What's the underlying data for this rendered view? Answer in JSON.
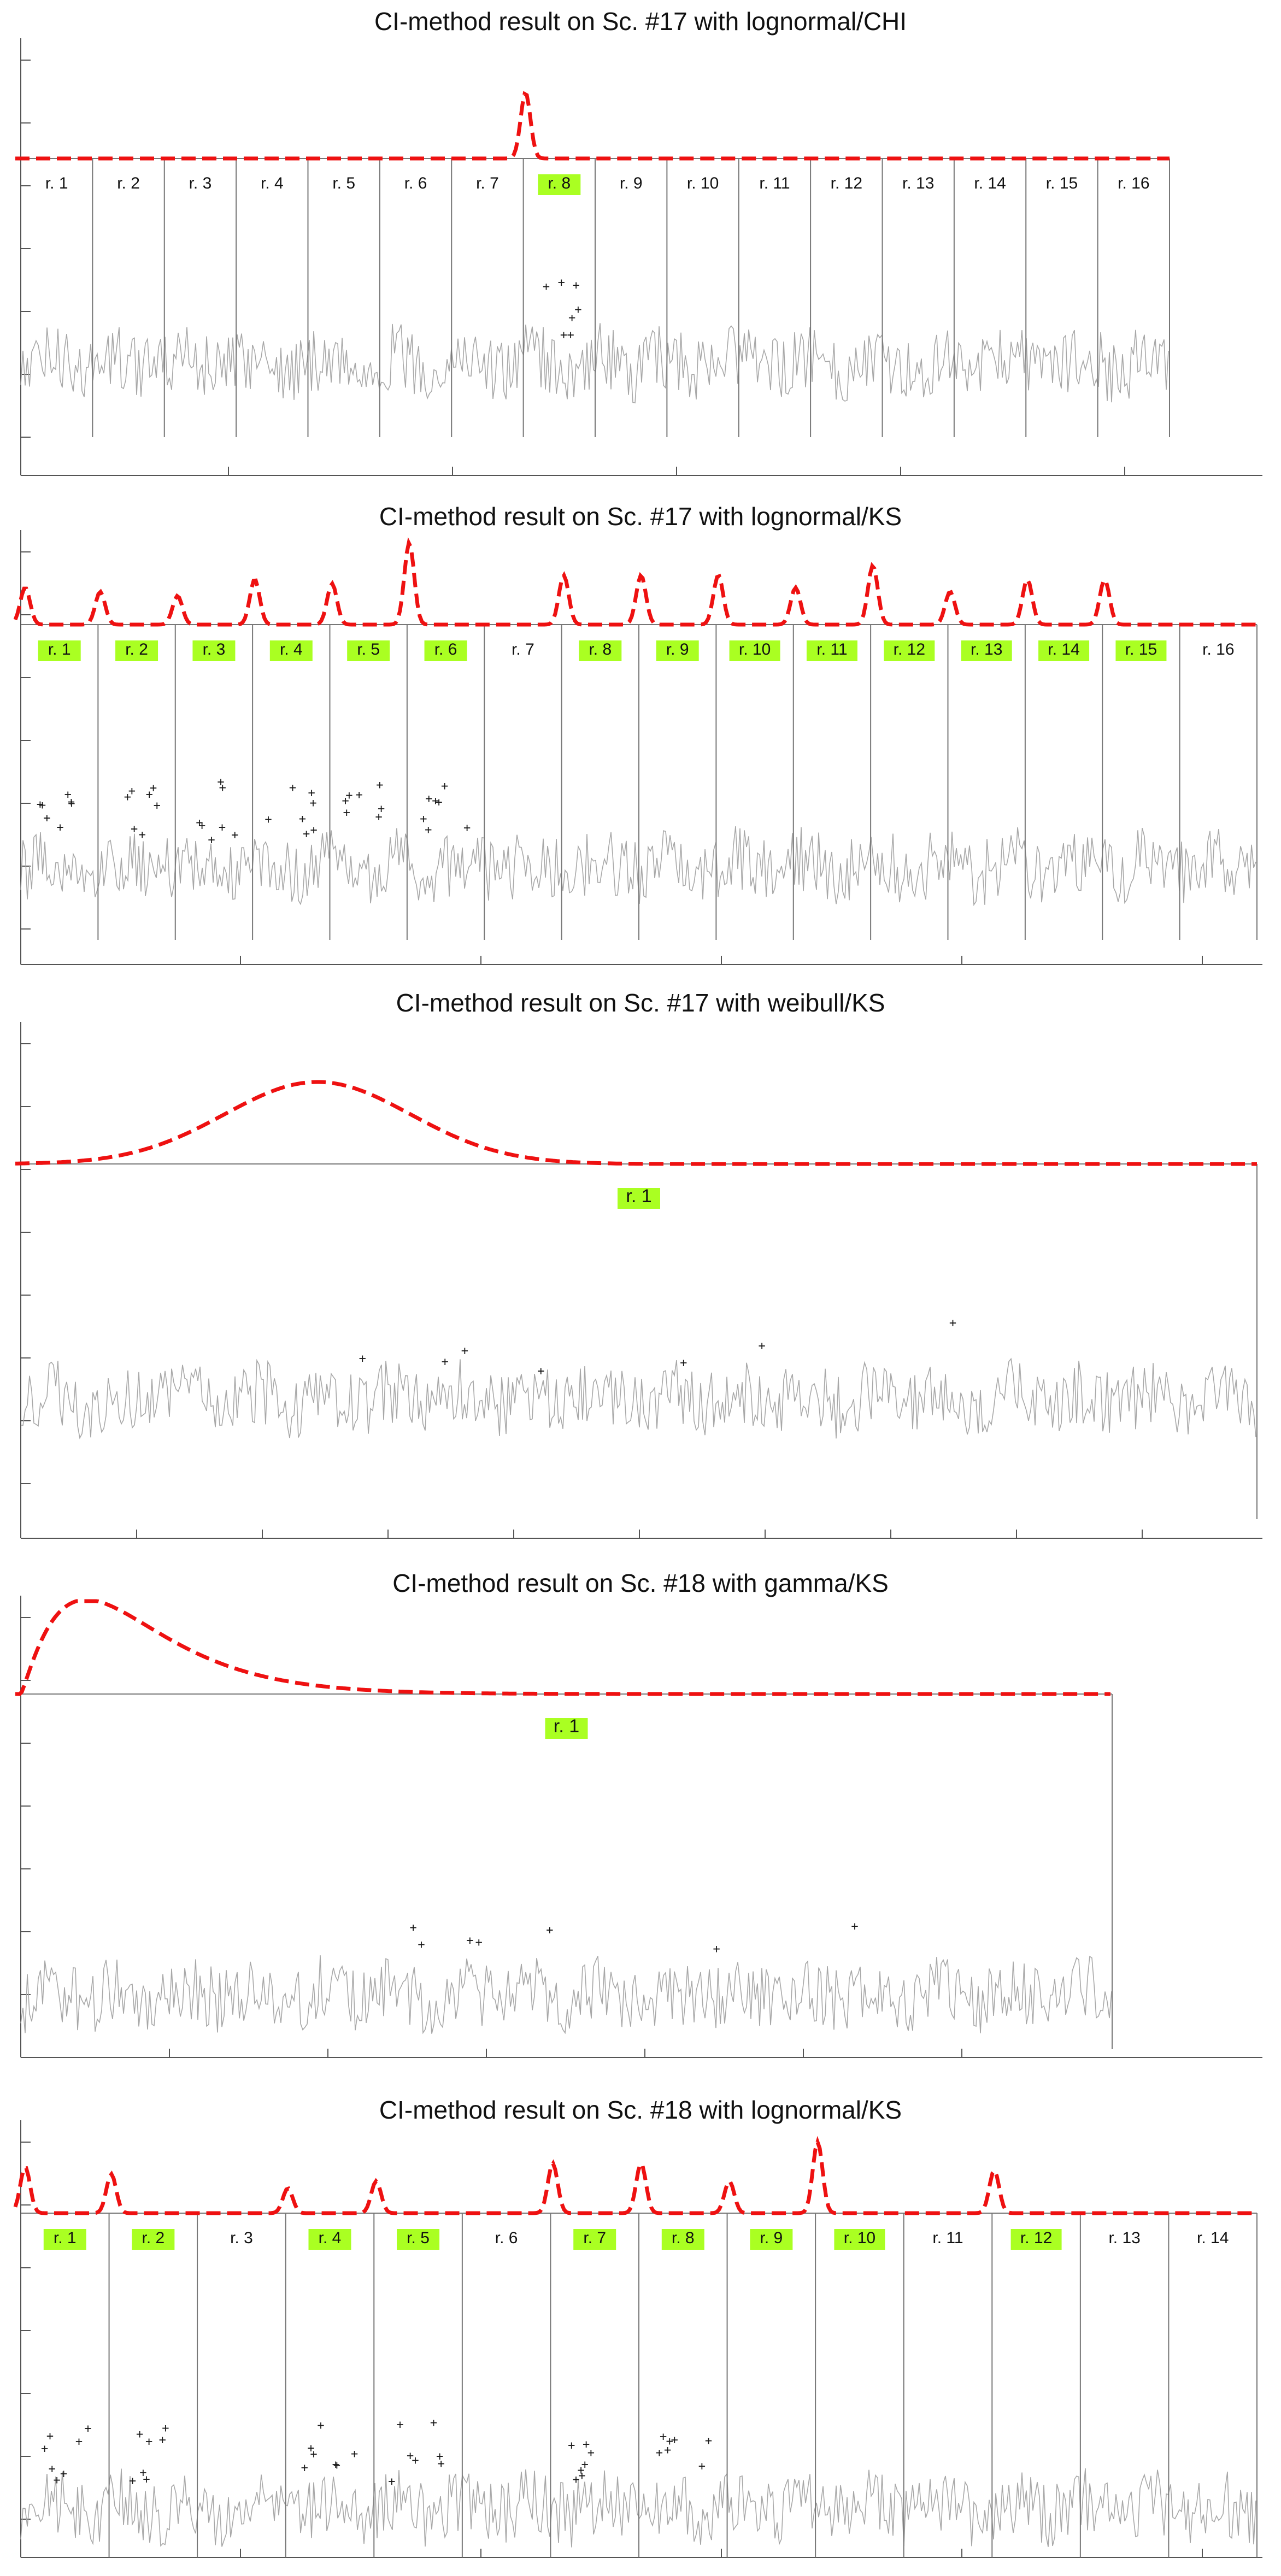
{
  "colors": {
    "density_curve": "#ee1111",
    "signal_trace": "#a8a8a8",
    "detected_markers": "#1a1a1a",
    "region_boundary": "#777777",
    "anomalous_region_highlight": "#aaff22",
    "axis": "#555555"
  },
  "chart_data": [
    {
      "type": "line",
      "title": "CI-method result on Sc. #17 with lognormal/CHI",
      "regions": [
        "r. 1",
        "r. 2",
        "r. 3",
        "r. 4",
        "r. 5",
        "r. 6",
        "r. 7",
        "r. 8",
        "r. 9",
        "r. 10",
        "r. 11",
        "r. 12",
        "r. 13",
        "r. 14",
        "r. 15",
        "r. 16"
      ],
      "highlighted_regions": [
        "r. 8"
      ],
      "density_peaks": [
        {
          "region": "r. 8",
          "relative_height": 1.0
        }
      ],
      "grid": false
    },
    {
      "type": "line",
      "title": "CI-method result on Sc. #17 with lognormal/KS",
      "regions": [
        "r. 1",
        "r. 2",
        "r. 3",
        "r. 4",
        "r. 5",
        "r. 6",
        "r. 7",
        "r. 8",
        "r. 9",
        "r. 10",
        "r. 11",
        "r. 12",
        "r. 13",
        "r. 14",
        "r. 15",
        "r. 16"
      ],
      "highlighted_regions": [
        "r. 1",
        "r. 2",
        "r. 3",
        "r. 4",
        "r. 5",
        "r. 6",
        "r. 8",
        "r. 9",
        "r. 10",
        "r. 11",
        "r. 12",
        "r. 13",
        "r. 14",
        "r. 15"
      ],
      "density_peaks": [
        {
          "region": "r. 1",
          "relative_height": 0.45
        },
        {
          "region": "r. 2",
          "relative_height": 0.4
        },
        {
          "region": "r. 3",
          "relative_height": 0.35
        },
        {
          "region": "r. 4",
          "relative_height": 0.55
        },
        {
          "region": "r. 5",
          "relative_height": 0.5
        },
        {
          "region": "r. 6",
          "relative_height": 1.0
        },
        {
          "region": "r. 8",
          "relative_height": 0.6
        },
        {
          "region": "r. 9",
          "relative_height": 0.6
        },
        {
          "region": "r. 10",
          "relative_height": 0.6
        },
        {
          "region": "r. 11",
          "relative_height": 0.45
        },
        {
          "region": "r. 12",
          "relative_height": 0.72
        },
        {
          "region": "r. 13",
          "relative_height": 0.4
        },
        {
          "region": "r. 14",
          "relative_height": 0.55
        },
        {
          "region": "r. 15",
          "relative_height": 0.55
        }
      ],
      "grid": false
    },
    {
      "type": "line",
      "title": "CI-method result on Sc. #17 with weibull/KS",
      "regions": [
        "r. 1"
      ],
      "highlighted_regions": [
        "r. 1"
      ],
      "density_peaks": [
        {
          "region": "r. 1",
          "relative_height": 1.0
        }
      ],
      "grid": false
    },
    {
      "type": "line",
      "title": "CI-method result on Sc. #18 with gamma/KS",
      "regions": [
        "r. 1"
      ],
      "highlighted_regions": [
        "r. 1"
      ],
      "density_peaks": [
        {
          "region": "r. 1",
          "relative_height": 1.0
        }
      ],
      "grid": false
    },
    {
      "type": "line",
      "title": "CI-method result on Sc. #18 with lognormal/KS",
      "regions": [
        "r. 1",
        "r. 2",
        "r. 3",
        "r. 4",
        "r. 5",
        "r. 6",
        "r. 7",
        "r. 8",
        "r. 9",
        "r. 10",
        "r. 11",
        "r. 12",
        "r. 13",
        "r. 14"
      ],
      "highlighted_regions": [
        "r. 1",
        "r. 2",
        "r. 4",
        "r. 5",
        "r. 7",
        "r. 8",
        "r. 9",
        "r. 10",
        "r. 12"
      ],
      "density_peaks": [
        {
          "region": "r. 1",
          "relative_height": 0.65
        },
        {
          "region": "r. 2",
          "relative_height": 0.55
        },
        {
          "region": "r. 4",
          "relative_height": 0.35
        },
        {
          "region": "r. 5",
          "relative_height": 0.45
        },
        {
          "region": "r. 7",
          "relative_height": 0.7
        },
        {
          "region": "r. 8",
          "relative_height": 0.7
        },
        {
          "region": "r. 9",
          "relative_height": 0.45
        },
        {
          "region": "r. 10",
          "relative_height": 1.0
        },
        {
          "region": "r. 12",
          "relative_height": 0.6
        }
      ],
      "grid": false
    }
  ]
}
